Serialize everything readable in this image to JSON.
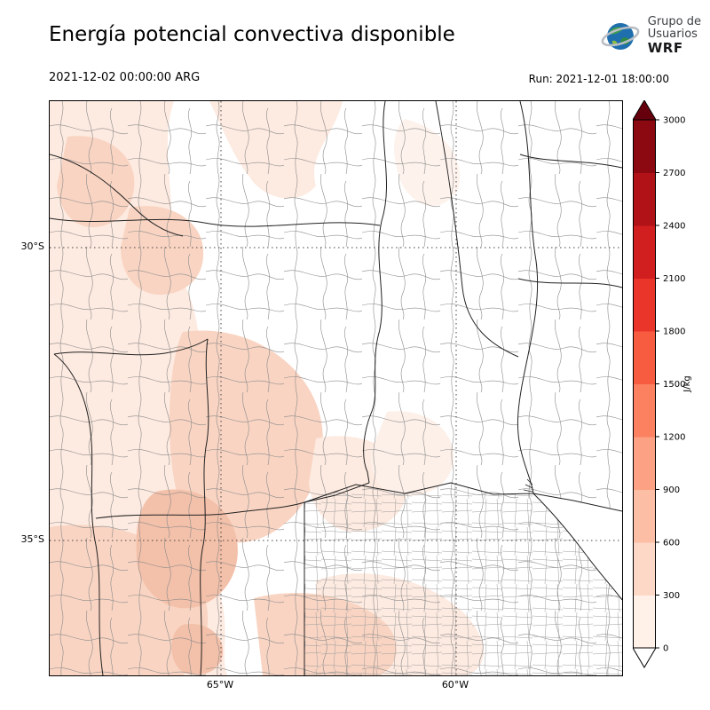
{
  "header": {
    "title": "Energía potencial convectiva disponible",
    "logo": {
      "line1": "Grupo de",
      "line2": "Usuarios",
      "line3": "WRF"
    }
  },
  "times": {
    "valid": "2021-12-02 00:00:00 ARG",
    "run": "Run: 2021-12-01 18:00:00"
  },
  "map": {
    "lat_labels": [
      {
        "text": "30°S"
      },
      {
        "text": "35°S"
      }
    ],
    "lon_labels": [
      {
        "text": "65°W"
      },
      {
        "text": "60°W"
      }
    ]
  },
  "colorbar": {
    "unit": "J/kg",
    "ticks_bottom_to_top": [
      "0",
      "300",
      "600",
      "900",
      "1200",
      "1500",
      "1800",
      "2100",
      "2400",
      "2700",
      "3000"
    ],
    "segments_bottom_to_top": [
      "#fff0e8",
      "#fdd8c7",
      "#fcbea5",
      "#fca183",
      "#fb8161",
      "#f75c41",
      "#ea362a",
      "#d11e1f",
      "#b11218",
      "#8c0912"
    ],
    "over_color": "#67000d",
    "under_color": "#ffffff"
  },
  "chart_data": {
    "type": "heatmap",
    "title": "Energía potencial convectiva disponible",
    "variable_units": "J/kg",
    "valid_time": "2021-12-02 00:00:00 ARG",
    "run_time": "Run: 2021-12-01 18:00:00",
    "levels": [
      0,
      300,
      600,
      900,
      1200,
      1500,
      1800,
      2100,
      2400,
      2700,
      3000
    ],
    "colormap": "Reds",
    "lat_gridlines": [
      "30°S",
      "35°S"
    ],
    "lon_gridlines": [
      "65°W",
      "60°W"
    ],
    "description": "CAPE shading mostly 0–900 J/kg over western and central Argentina; near zero (white) over the east and over the Río de la Plata"
  }
}
